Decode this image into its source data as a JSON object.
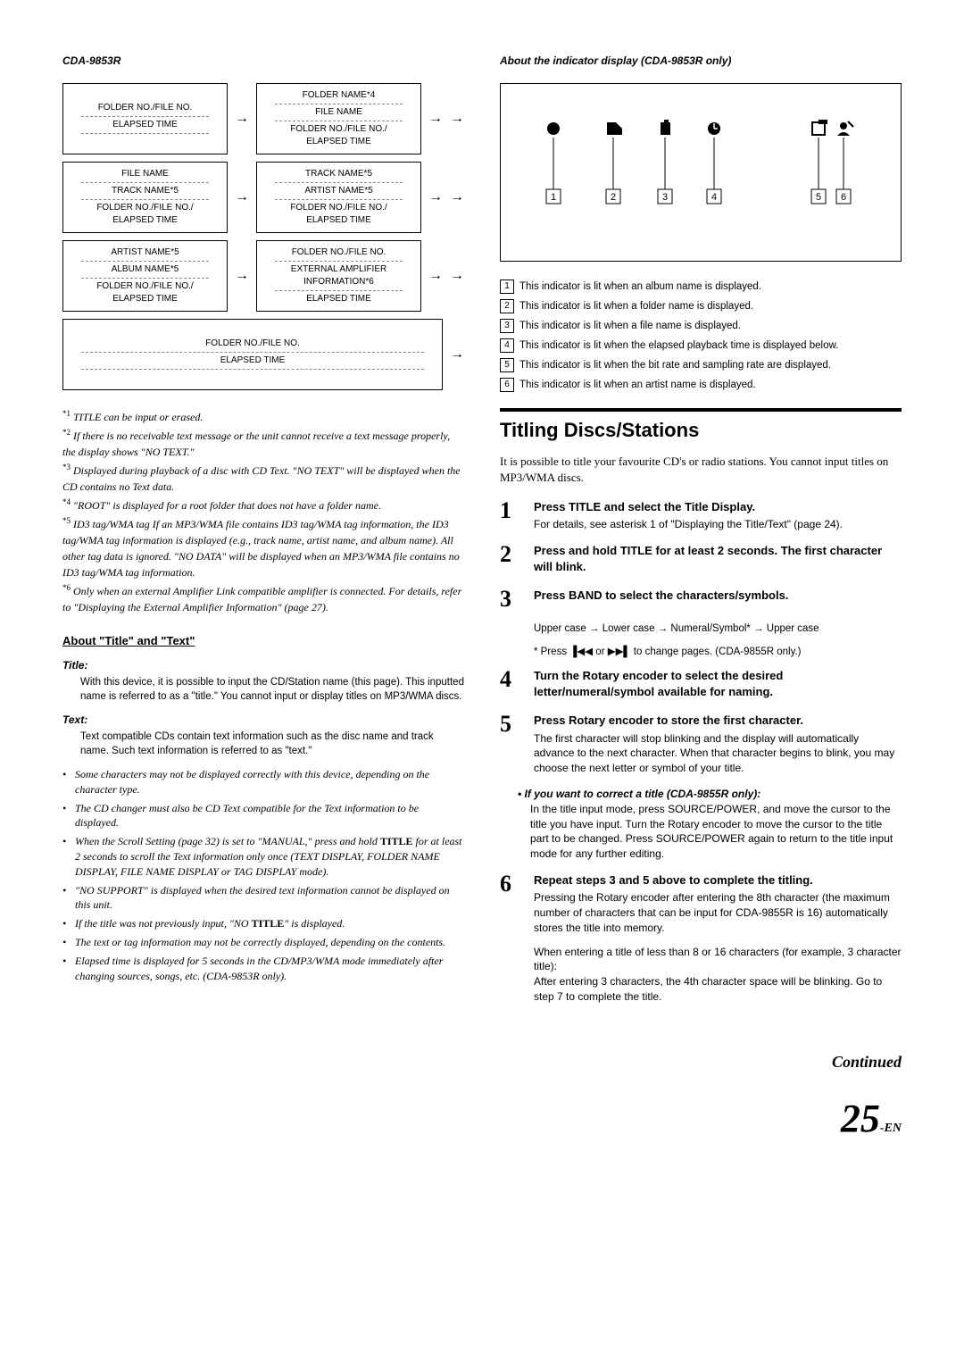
{
  "left": {
    "model": "CDA-9853R",
    "flow_rows": [
      [
        {
          "lines": [
            "FOLDER NO./FILE NO.",
            "—",
            "ELAPSED TIME",
            "—",
            "",
            ""
          ]
        },
        {
          "lines": [
            "FOLDER NAME*4",
            "—",
            "FILE NAME",
            "—",
            "FOLDER NO./FILE NO./",
            "ELAPSED TIME"
          ]
        }
      ],
      [
        {
          "lines": [
            "FILE NAME",
            "—",
            "TRACK NAME*5",
            "—",
            "FOLDER NO./FILE NO./",
            "ELAPSED TIME"
          ]
        },
        {
          "lines": [
            "TRACK NAME*5",
            "—",
            "ARTIST NAME*5",
            "—",
            "FOLDER NO./FILE NO./",
            "ELAPSED TIME"
          ]
        }
      ],
      [
        {
          "lines": [
            "ARTIST NAME*5",
            "—",
            "ALBUM NAME*5",
            "—",
            "FOLDER NO./FILE NO./",
            "ELAPSED TIME"
          ]
        },
        {
          "lines": [
            "FOLDER NO./FILE NO.",
            "—",
            "EXTERNAL AMPLIFIER",
            "INFORMATION*6",
            "—",
            "ELAPSED TIME"
          ]
        }
      ],
      [
        {
          "lines": [
            "FOLDER NO./FILE NO.",
            "—",
            "ELAPSED TIME",
            "—",
            "",
            ""
          ]
        },
        null
      ]
    ],
    "footnotes": [
      {
        "mark": "*1",
        "text": "TITLE can be input or erased."
      },
      {
        "mark": "*2",
        "text": "If there is no receivable text message or the unit cannot receive a text message properly, the display shows \"NO TEXT.\""
      },
      {
        "mark": "*3",
        "text": "Displayed during playback of a disc with CD Text. \"NO TEXT\" will be displayed when the CD contains no Text data."
      },
      {
        "mark": "*4",
        "text": "\"ROOT\" is displayed for a root folder that does not have a folder name."
      },
      {
        "mark": "*5",
        "text": "ID3 tag/WMA tag\nIf an MP3/WMA file contains ID3 tag/WMA tag information, the ID3 tag/WMA tag information is displayed (e.g., track name, artist name, and album name). All other tag data is ignored.\n\"NO DATA\" will be displayed when an MP3/WMA file contains no ID3 tag/WMA tag information."
      },
      {
        "mark": "*6",
        "text": "Only when an external Amplifier Link compatible amplifier is connected. For details, refer to \"Displaying the External Amplifier Information\" (page 27)."
      }
    ],
    "about_heading": "About \"Title\" and \"Text\"",
    "title_label": "Title:",
    "title_text": "With this device, it is possible to input the CD/Station name (this page). This inputted name is referred to as a \"title.\" You cannot input or display titles on MP3/WMA discs.",
    "text_label": "Text:",
    "text_text": "Text compatible CDs contain text information such as the disc name and track name. Such text information is referred to as \"text.\"",
    "bullets": [
      "Some characters may not be displayed correctly with this device, depending on the character type.",
      "The CD changer must also be CD Text compatible for the Text information to be displayed.",
      "When the Scroll Setting (page 32) is set to \"MANUAL,\" press and hold TITLE for at least 2 seconds to scroll the Text information only once (TEXT DISPLAY, FOLDER NAME DISPLAY, FILE NAME DISPLAY or TAG DISPLAY mode).",
      "\"NO SUPPORT\" is displayed when the desired text information cannot be displayed on this unit.",
      "If the title was not previously input, \"NO TITLE\" is displayed.",
      "The text or tag information may not be correctly displayed, depending on the contents.",
      "Elapsed time is displayed for 5 seconds in the CD/MP3/WMA mode immediately after changing sources, songs, etc. (CDA-9853R only)."
    ]
  },
  "right": {
    "header": "About the indicator display (CDA-9853R only)",
    "legend": [
      {
        "n": "1",
        "text": "This indicator is lit when an album name is displayed."
      },
      {
        "n": "2",
        "text": "This indicator is lit when a folder name is displayed."
      },
      {
        "n": "3",
        "text": "This indicator is lit when a file name is displayed."
      },
      {
        "n": "4",
        "text": "This indicator is lit when the elapsed playback time is displayed below."
      },
      {
        "n": "5",
        "text": "This indicator is lit when the bit rate and sampling rate are displayed."
      },
      {
        "n": "6",
        "text": "This indicator is lit when an artist name is displayed."
      }
    ],
    "section_title": "Titling Discs/Stations",
    "intro": "It is possible to title your favourite CD's or radio stations.\nYou cannot input titles on MP3/WMA discs.",
    "steps": [
      {
        "n": "1",
        "title_pre": "Press ",
        "cmd": "TITLE",
        "title_post": " and select the Title Display.",
        "desc": "For details, see asterisk 1 of \"Displaying the Title/Text\" (page 24)."
      },
      {
        "n": "2",
        "title_pre": "Press and hold ",
        "cmd": "TITLE",
        "title_post": " for at least 2 seconds. The first character will blink.",
        "desc": ""
      },
      {
        "n": "3",
        "title_pre": "Press ",
        "cmd": "BAND",
        "title_post": " to select the characters/symbols.",
        "desc": ""
      }
    ],
    "step3_sub1": "Upper case → Lower case → Numeral/Symbol* → Upper case",
    "step3_sub2_pre": "* Press ",
    "step3_sub2_post": " to change pages. (CDA-9855R only.)",
    "step4": {
      "n": "4",
      "title_pre": "Turn the ",
      "cmd": "Rotary encoder",
      "title_post": " to select the desired letter/numeral/symbol available for naming."
    },
    "step5": {
      "n": "5",
      "title_pre": "Press ",
      "cmd": "Rotary encoder",
      "title_post": " to store the first character.",
      "desc": "The first character will stop blinking and the display will automatically advance to the next character. When that character begins to blink, you may choose the next letter or symbol of your title."
    },
    "correct_heading": "• If you want to correct a title (CDA-9855R only):",
    "correct_body": "In the title input mode, press SOURCE/POWER, and move the cursor to the title you have input. Turn the Rotary encoder to move the cursor to the title part to be changed. Press SOURCE/POWER again to return to the title input mode for any further editing.",
    "step6": {
      "n": "6",
      "title": "Repeat steps 3 and 5 above to complete the titling.",
      "d1": "Pressing the Rotary encoder after entering the 8th character (the maximum number of characters that can be input for CDA-9855R is 16) automatically stores the title into memory.",
      "d2": "When entering a title of less than 8 or 16 characters (for example, 3 character title):\nAfter entering 3 characters, the 4th character space will be blinking. Go to step 7 to complete the title."
    },
    "continued": "Continued",
    "page_num": "25",
    "page_suffix": "-EN"
  }
}
